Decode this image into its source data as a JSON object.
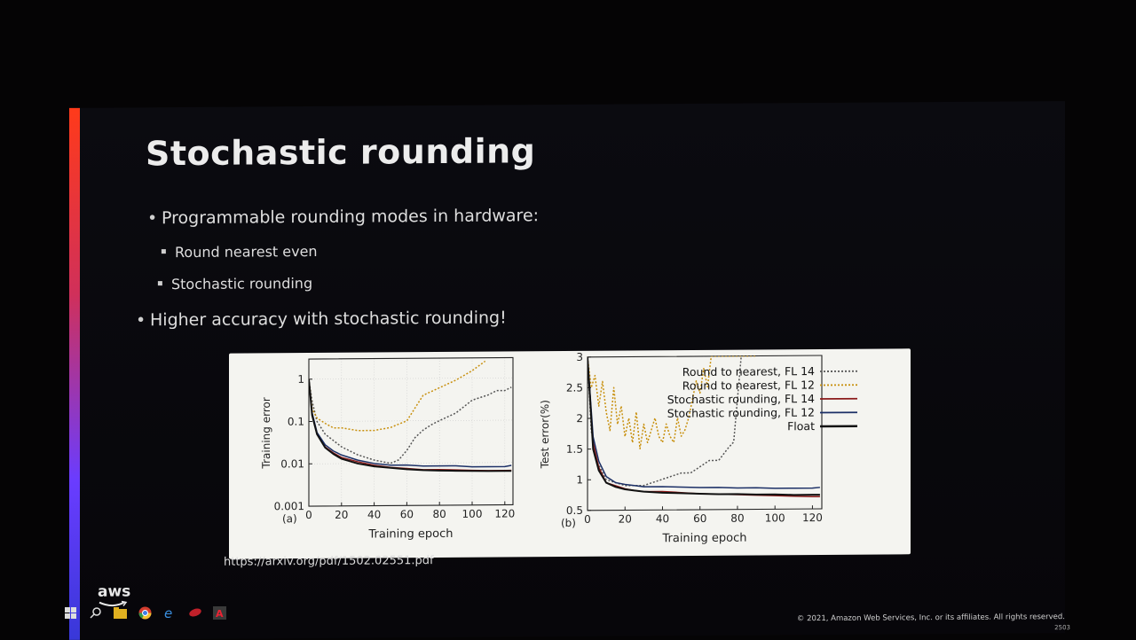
{
  "slide": {
    "title": "Stochastic rounding",
    "bullets": [
      "Programmable rounding modes in hardware:",
      "Round nearest even",
      "Stochastic rounding",
      "Higher accuracy with stochastic rounding!"
    ],
    "reference_url": "https://arxiv.org/pdf/1502.02551.pdf",
    "logo_text": "aws",
    "copyright": "© 2021, Amazon Web Services, Inc. or its affiliates. All rights reserved.",
    "slide_number": "2503"
  },
  "colors": {
    "accent_top": "#ff3a1a",
    "accent_bottom": "#3838d8",
    "series": {
      "Round to nearest, FL 14": "#555555",
      "Round to nearest, FL 12": "#c8900e",
      "Stochastic rounding, FL 14": "#8b1a1a",
      "Stochastic rounding, FL 12": "#1b2f66",
      "Float": "#111111"
    }
  },
  "taskbar": {
    "icons": [
      "windows-start-icon",
      "search-icon",
      "file-explorer-icon",
      "chrome-icon",
      "edge-icon",
      "pdf-reader-icon",
      "acrobat-icon"
    ]
  },
  "chart_data": [
    {
      "type": "line",
      "panel": "(a)",
      "xlabel": "Training epoch",
      "ylabel": "Training error",
      "xlim": [
        0,
        125
      ],
      "ylim": [
        0.001,
        3
      ],
      "yscale": "log",
      "xticks": [
        0,
        20,
        40,
        60,
        80,
        100,
        120
      ],
      "yticks": [
        0.001,
        0.01,
        0.1,
        1
      ],
      "ytick_labels": [
        "0.001",
        "0.01",
        "0.1",
        "1"
      ],
      "grid": true,
      "series": [
        {
          "name": "Round to nearest, FL 14",
          "style": "dotted",
          "x": [
            0,
            2,
            5,
            10,
            20,
            30,
            40,
            50,
            55,
            60,
            65,
            70,
            75,
            80,
            90,
            100,
            110,
            115,
            120,
            124
          ],
          "y": [
            1.0,
            0.3,
            0.1,
            0.05,
            0.025,
            0.016,
            0.012,
            0.01,
            0.012,
            0.02,
            0.04,
            0.06,
            0.08,
            0.1,
            0.15,
            0.3,
            0.4,
            0.5,
            0.5,
            0.6
          ]
        },
        {
          "name": "Round to nearest, FL 12",
          "style": "dotted",
          "x": [
            0,
            2,
            5,
            10,
            15,
            20,
            30,
            40,
            50,
            60,
            65,
            70,
            80,
            90,
            100,
            108
          ],
          "y": [
            1.0,
            0.2,
            0.12,
            0.09,
            0.07,
            0.07,
            0.06,
            0.06,
            0.07,
            0.1,
            0.2,
            0.4,
            0.6,
            0.9,
            1.5,
            2.5
          ]
        },
        {
          "name": "Stochastic rounding, FL 14",
          "style": "solid",
          "x": [
            0,
            2,
            5,
            10,
            15,
            20,
            30,
            40,
            50,
            60,
            70,
            80,
            90,
            100,
            110,
            120,
            124
          ],
          "y": [
            1.0,
            0.15,
            0.05,
            0.025,
            0.018,
            0.014,
            0.011,
            0.009,
            0.008,
            0.0075,
            0.007,
            0.007,
            0.0068,
            0.0066,
            0.0065,
            0.0065,
            0.0065
          ]
        },
        {
          "name": "Stochastic rounding, FL 12",
          "style": "solid",
          "x": [
            0,
            2,
            5,
            10,
            15,
            20,
            30,
            40,
            50,
            60,
            70,
            80,
            90,
            100,
            110,
            120,
            124
          ],
          "y": [
            1.0,
            0.16,
            0.055,
            0.028,
            0.02,
            0.016,
            0.012,
            0.01,
            0.009,
            0.009,
            0.0085,
            0.0085,
            0.0085,
            0.008,
            0.008,
            0.008,
            0.0085
          ]
        },
        {
          "name": "Float",
          "style": "solid",
          "x": [
            0,
            2,
            5,
            10,
            15,
            20,
            30,
            40,
            50,
            60,
            70,
            80,
            90,
            100,
            110,
            120,
            124
          ],
          "y": [
            1.0,
            0.14,
            0.05,
            0.024,
            0.017,
            0.013,
            0.01,
            0.0085,
            0.0078,
            0.0072,
            0.0068,
            0.0066,
            0.0065,
            0.0064,
            0.0063,
            0.0063,
            0.0063
          ]
        }
      ]
    },
    {
      "type": "line",
      "panel": "(b)",
      "xlabel": "Training epoch",
      "ylabel": "Test error(%)",
      "xlim": [
        0,
        125
      ],
      "ylim": [
        0.5,
        3
      ],
      "xticks": [
        0,
        20,
        40,
        60,
        80,
        100,
        120
      ],
      "yticks": [
        0.5,
        1,
        1.5,
        2,
        2.5,
        3
      ],
      "ytick_labels": [
        "0.5",
        "1",
        "1.5",
        "2",
        "2.5",
        "3"
      ],
      "grid": false,
      "legend": "top-right",
      "series": [
        {
          "name": "Round to nearest, FL 14",
          "style": "dotted",
          "x": [
            0,
            2,
            5,
            10,
            20,
            30,
            40,
            50,
            55,
            60,
            65,
            70,
            75,
            78,
            82
          ],
          "y": [
            3.0,
            1.8,
            1.3,
            1.0,
            0.9,
            0.9,
            1.0,
            1.1,
            1.1,
            1.2,
            1.3,
            1.3,
            1.5,
            1.6,
            3.0
          ]
        },
        {
          "name": "Round to nearest, FL 12",
          "style": "dotted",
          "x": [
            0,
            2,
            4,
            6,
            8,
            10,
            12,
            14,
            16,
            18,
            20,
            22,
            24,
            26,
            28,
            30,
            32,
            34,
            36,
            38,
            40,
            42,
            44,
            46,
            48,
            50,
            52,
            54,
            56,
            58,
            60,
            62,
            64,
            66,
            70,
            80,
            90
          ],
          "y": [
            3.0,
            2.5,
            2.7,
            2.2,
            2.6,
            2.1,
            1.8,
            2.5,
            1.9,
            2.2,
            1.7,
            2.0,
            1.6,
            2.1,
            1.5,
            1.9,
            1.6,
            1.8,
            2.0,
            1.7,
            1.6,
            1.9,
            1.7,
            1.6,
            2.0,
            1.7,
            1.8,
            2.0,
            2.3,
            2.6,
            2.4,
            2.8,
            2.5,
            3.0,
            3.0,
            3.0,
            3.0
          ]
        },
        {
          "name": "Stochastic rounding, FL 14",
          "style": "solid",
          "x": [
            0,
            3,
            6,
            10,
            15,
            20,
            25,
            30,
            40,
            50,
            60,
            70,
            80,
            90,
            100,
            110,
            120,
            124
          ],
          "y": [
            3.0,
            1.6,
            1.2,
            0.95,
            0.9,
            0.85,
            0.82,
            0.8,
            0.8,
            0.78,
            0.76,
            0.75,
            0.74,
            0.73,
            0.72,
            0.71,
            0.7,
            0.7
          ]
        },
        {
          "name": "Stochastic rounding, FL 12",
          "style": "solid",
          "x": [
            0,
            3,
            6,
            10,
            15,
            20,
            25,
            30,
            40,
            50,
            60,
            70,
            80,
            90,
            100,
            110,
            120,
            124
          ],
          "y": [
            3.0,
            1.7,
            1.3,
            1.05,
            0.95,
            0.92,
            0.9,
            0.88,
            0.88,
            0.87,
            0.86,
            0.86,
            0.85,
            0.85,
            0.84,
            0.84,
            0.84,
            0.85
          ]
        },
        {
          "name": "Float",
          "style": "solid",
          "x": [
            0,
            3,
            6,
            10,
            15,
            20,
            25,
            30,
            40,
            50,
            60,
            70,
            80,
            90,
            100,
            110,
            120,
            124
          ],
          "y": [
            3.0,
            1.5,
            1.15,
            0.95,
            0.88,
            0.84,
            0.82,
            0.8,
            0.78,
            0.77,
            0.76,
            0.75,
            0.75,
            0.74,
            0.74,
            0.73,
            0.73,
            0.73
          ]
        }
      ]
    }
  ]
}
